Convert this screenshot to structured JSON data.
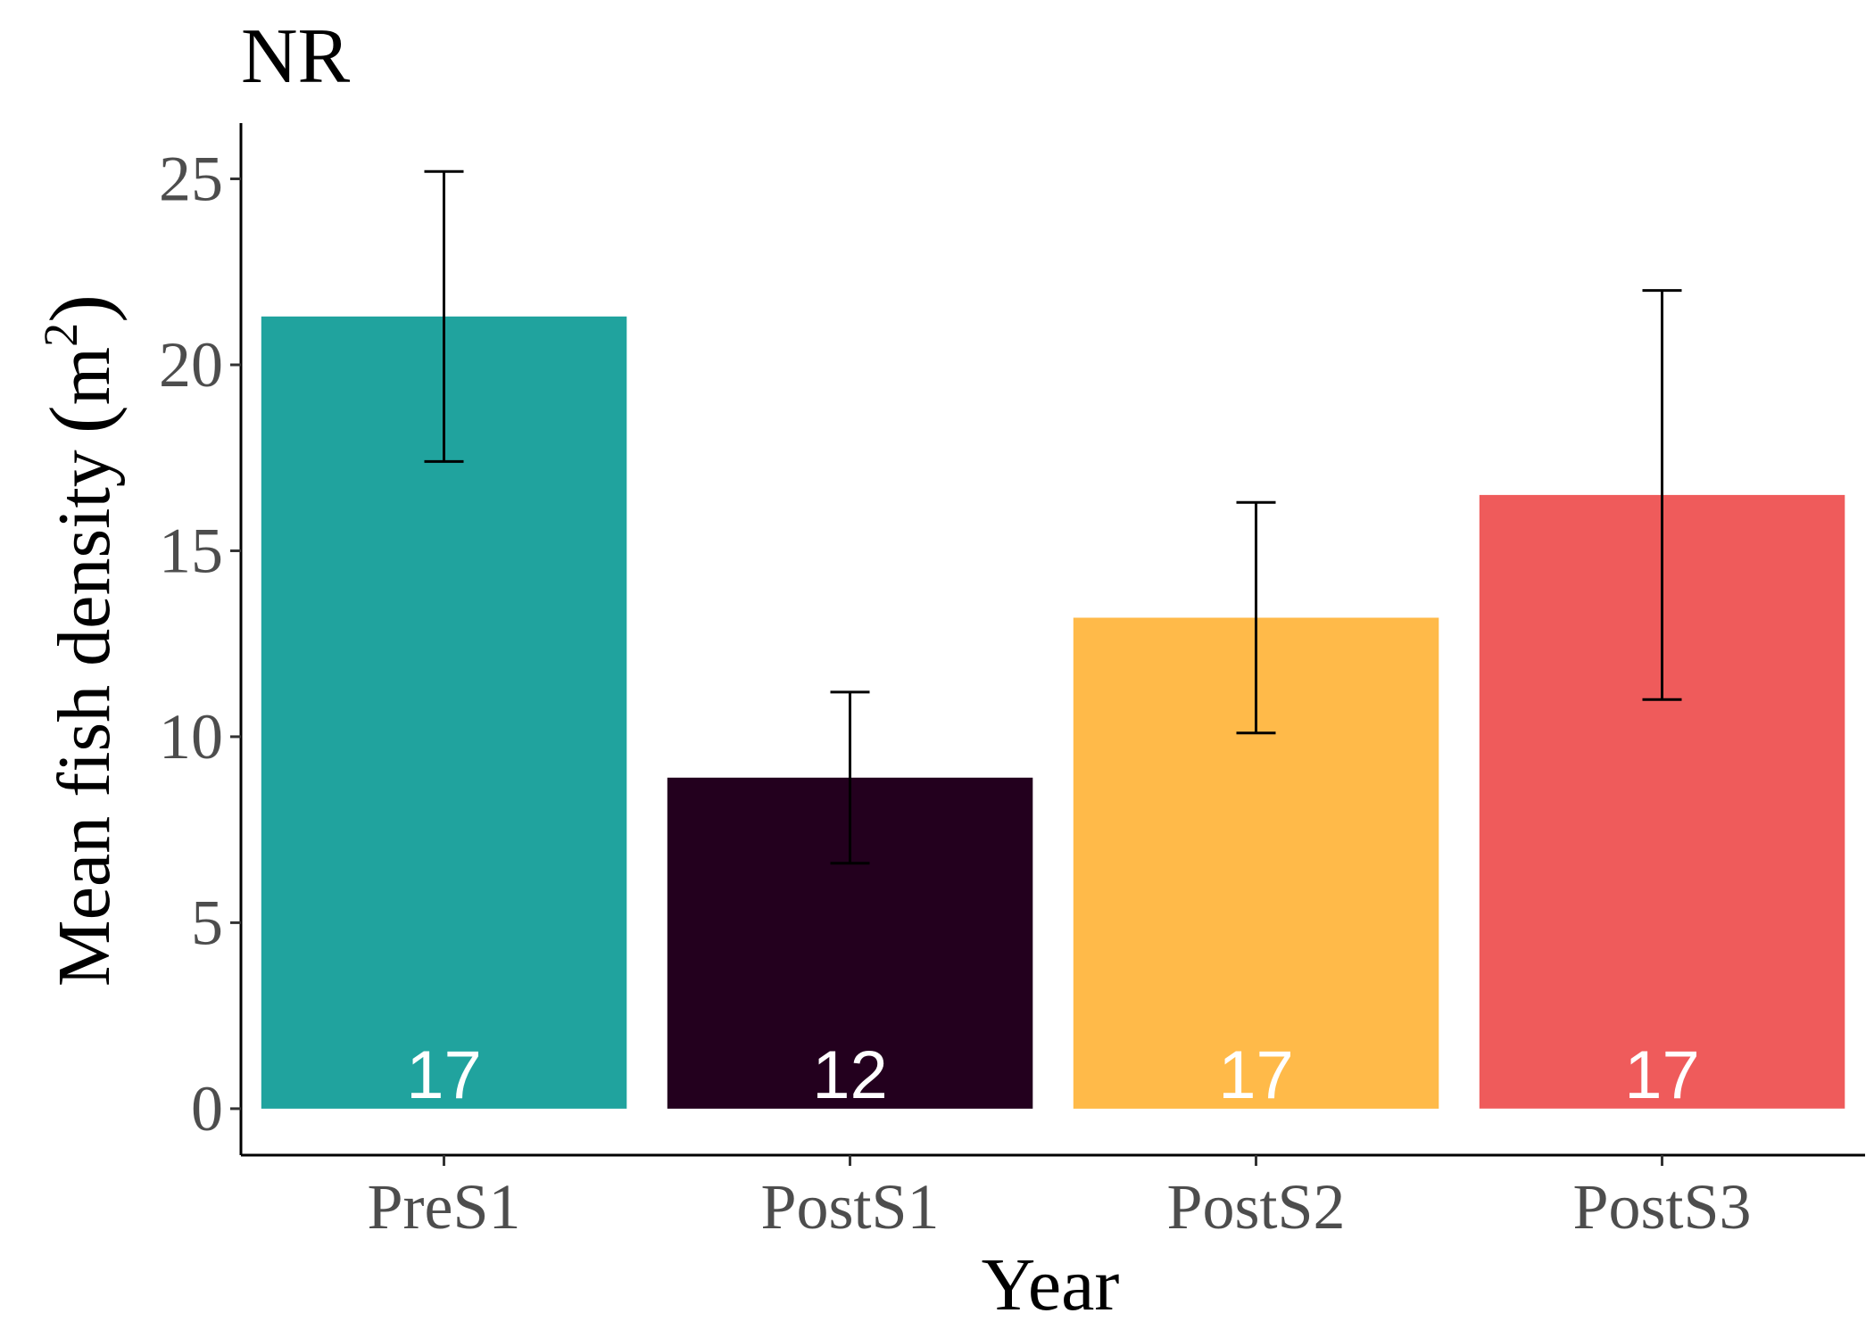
{
  "chart_data": {
    "type": "bar",
    "title": "NR",
    "xlabel": "Year",
    "ylabel": "Mean fish density (m²)",
    "ylabel_main": "Mean fish density",
    "ylabel_unit_base": "m",
    "ylabel_unit_exp": "2",
    "categories": [
      "PreS1",
      "PostS1",
      "PostS2",
      "PostS3"
    ],
    "values": [
      21.3,
      8.9,
      13.2,
      16.5
    ],
    "error_low": [
      17.4,
      6.6,
      10.1,
      11.0
    ],
    "error_high": [
      25.2,
      11.2,
      16.3,
      22.0
    ],
    "bar_labels": [
      "17",
      "12",
      "17",
      "17"
    ],
    "colors": [
      "#20a39e",
      "#23001e",
      "#ffba49",
      "#ef5b5b"
    ],
    "yticks": [
      "0",
      "5",
      "10",
      "15",
      "20",
      "25"
    ],
    "ylim": [
      -1.25,
      26.5
    ],
    "grid": false,
    "legend": "none"
  }
}
